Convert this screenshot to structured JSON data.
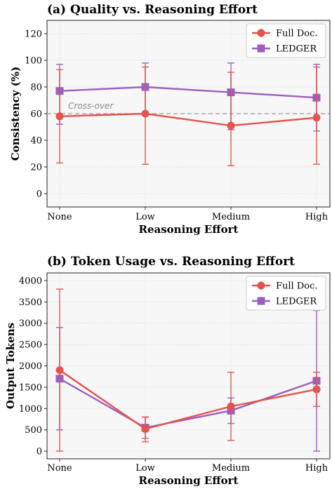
{
  "chart_data": [
    {
      "type": "line",
      "title": "(a) Quality vs. Reasoning Effort",
      "xlabel": "Reasoning Effort",
      "ylabel": "Consistency (%)",
      "categories": [
        "None",
        "Low",
        "Medium",
        "High"
      ],
      "yticks": [
        0,
        20,
        40,
        60,
        80,
        100,
        120
      ],
      "ylim": [
        -10,
        130
      ],
      "grid": true,
      "legend_position": "top-right",
      "series": [
        {
          "name": "Full Doc.",
          "color": "#e5534b",
          "marker": "circle",
          "values": [
            58,
            60,
            51,
            57
          ],
          "err_low": [
            23,
            22,
            21,
            22
          ],
          "err_high": [
            93,
            95,
            91,
            95
          ]
        },
        {
          "name": "LEDGER",
          "color": "#9b5fc0",
          "marker": "square",
          "values": [
            77,
            80,
            76,
            72
          ],
          "err_low": [
            52,
            60,
            48,
            47
          ],
          "err_high": [
            97,
            98,
            98,
            97
          ]
        }
      ],
      "reference_line": {
        "y": 60,
        "label": "Cross-over",
        "color": "#aaaaaa"
      }
    },
    {
      "type": "line",
      "title": "(b) Token Usage vs. Reasoning Effort",
      "xlabel": "Reasoning Effort",
      "ylabel": "Output Tokens",
      "categories": [
        "None",
        "Low",
        "Medium",
        "High"
      ],
      "yticks": [
        0,
        500,
        1000,
        1500,
        2000,
        2500,
        3000,
        3500,
        4000
      ],
      "ylim": [
        -180,
        4180
      ],
      "grid": true,
      "legend_position": "top-right",
      "series": [
        {
          "name": "Full Doc.",
          "color": "#e5534b",
          "marker": "circle",
          "values": [
            1900,
            520,
            1050,
            1450
          ],
          "err_low": [
            0,
            220,
            250,
            1050
          ],
          "err_high": [
            3800,
            800,
            1850,
            1850
          ]
        },
        {
          "name": "LEDGER",
          "color": "#9b5fc0",
          "marker": "square",
          "values": [
            1700,
            550,
            950,
            1650
          ],
          "err_low": [
            500,
            300,
            650,
            0
          ],
          "err_high": [
            2900,
            800,
            1250,
            3300
          ]
        }
      ]
    }
  ]
}
